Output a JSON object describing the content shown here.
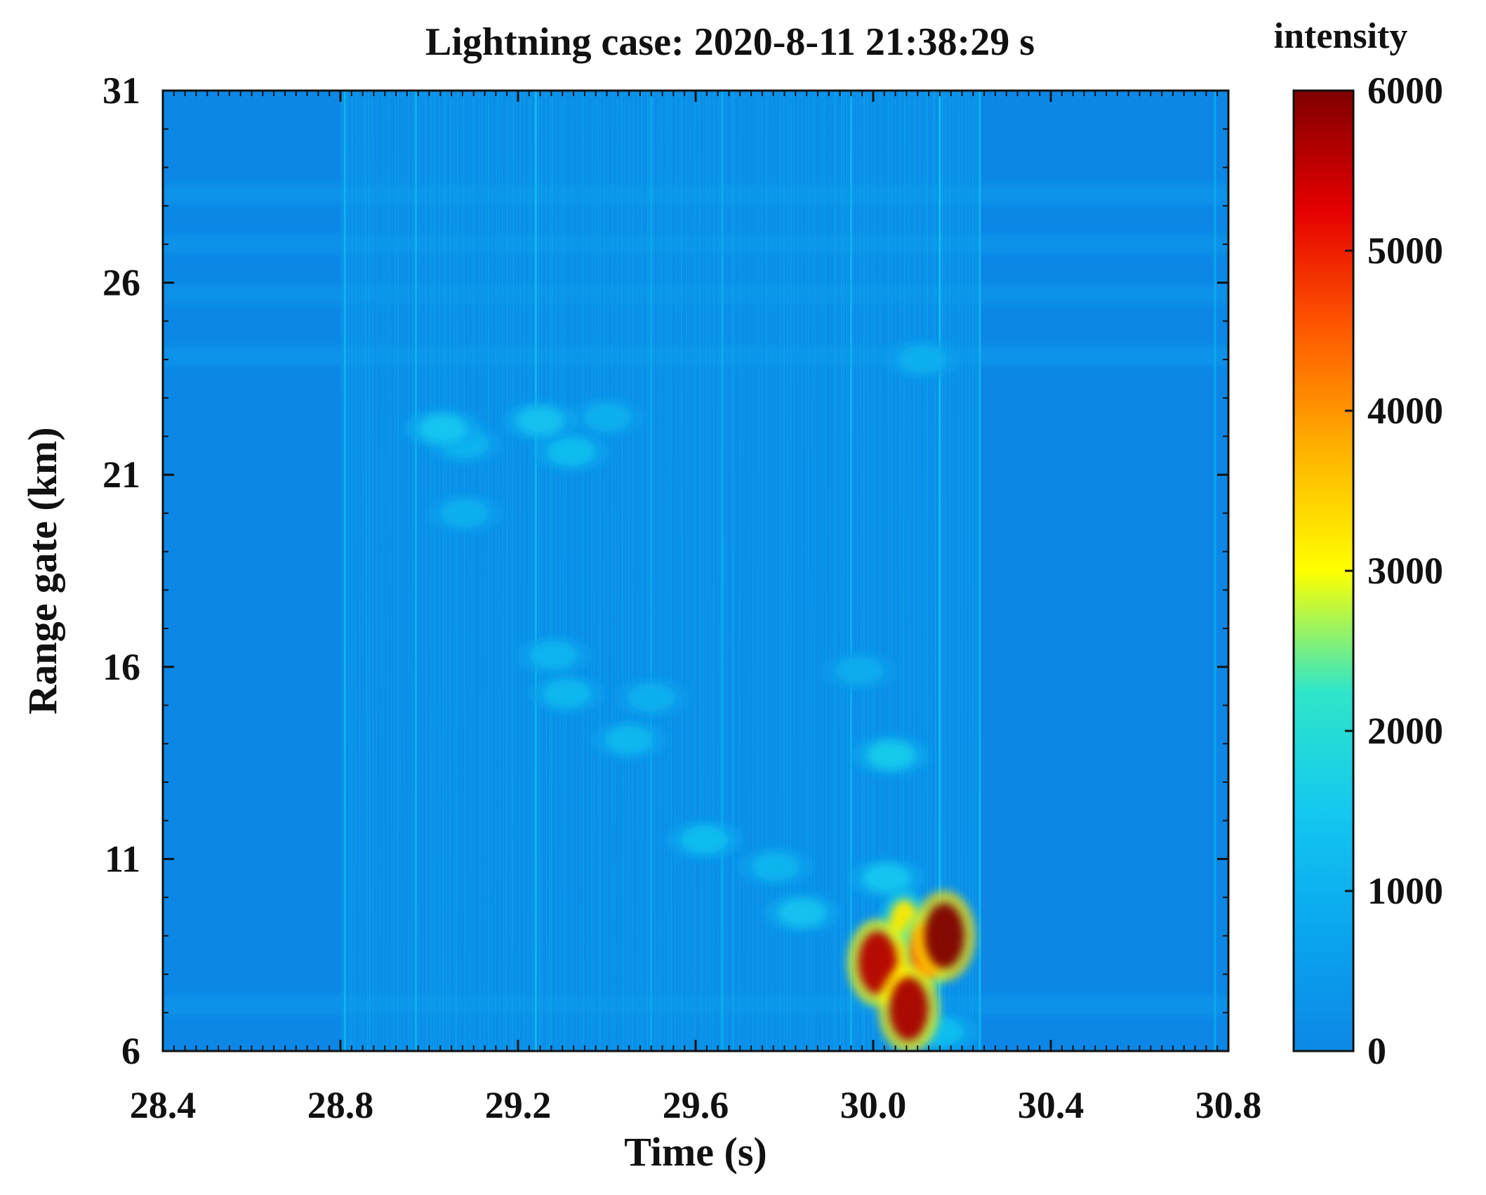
{
  "chart_data": {
    "type": "heatmap",
    "title": "Lightning case: 2020-8-11 21:38:29 s",
    "xlabel": "Time (s)",
    "ylabel": "Range gate (km)",
    "xlim": [
      28.4,
      30.8
    ],
    "ylim": [
      6,
      31
    ],
    "x_ticks": [
      28.4,
      28.8,
      29.2,
      29.6,
      30.0,
      30.4,
      30.8
    ],
    "x_tick_labels": [
      "28.4",
      "28.8",
      "29.2",
      "29.6",
      "30.0",
      "30.4",
      "30.8"
    ],
    "y_ticks": [
      6,
      11,
      16,
      21,
      26,
      31
    ],
    "y_tick_labels": [
      "6",
      "11",
      "16",
      "21",
      "26",
      "31"
    ],
    "colorbar": {
      "label": "intensity",
      "range": [
        0,
        6000
      ],
      "ticks": [
        0,
        1000,
        2000,
        3000,
        4000,
        5000,
        6000
      ],
      "tick_labels": [
        "0",
        "1000",
        "2000",
        "3000",
        "4000",
        "5000",
        "6000"
      ],
      "colormap": "jet"
    },
    "background_intensity": 300,
    "active_time_range": [
      28.8,
      30.24
    ],
    "vertical_streaks": [
      {
        "t": 28.81,
        "intensity": 1200
      },
      {
        "t": 28.97,
        "intensity": 1100
      },
      {
        "t": 29.24,
        "intensity": 1300
      },
      {
        "t": 29.5,
        "intensity": 900
      },
      {
        "t": 29.66,
        "intensity": 1000
      },
      {
        "t": 29.95,
        "intensity": 1100
      },
      {
        "t": 30.15,
        "intensity": 1400
      },
      {
        "t": 30.24,
        "intensity": 1200
      },
      {
        "t": 30.77,
        "intensity": 900
      }
    ],
    "horizontal_bands": [
      {
        "range_km": 28.3,
        "intensity": 550
      },
      {
        "range_km": 27.0,
        "intensity": 500
      },
      {
        "range_km": 25.7,
        "intensity": 480
      },
      {
        "range_km": 24.1,
        "intensity": 550
      },
      {
        "range_km": 7.2,
        "intensity": 500
      }
    ],
    "echo_features": [
      {
        "t": 29.03,
        "range_km": 22.2,
        "intensity": 1500
      },
      {
        "t": 29.08,
        "range_km": 21.8,
        "intensity": 1100
      },
      {
        "t": 29.08,
        "range_km": 20.0,
        "intensity": 1000
      },
      {
        "t": 29.25,
        "range_km": 22.4,
        "intensity": 1400
      },
      {
        "t": 29.32,
        "range_km": 21.6,
        "intensity": 1300
      },
      {
        "t": 29.4,
        "range_km": 22.5,
        "intensity": 1000
      },
      {
        "t": 29.28,
        "range_km": 16.3,
        "intensity": 1100
      },
      {
        "t": 29.31,
        "range_km": 15.3,
        "intensity": 1200
      },
      {
        "t": 29.45,
        "range_km": 14.1,
        "intensity": 1200
      },
      {
        "t": 29.5,
        "range_km": 15.2,
        "intensity": 1000
      },
      {
        "t": 29.62,
        "range_km": 11.5,
        "intensity": 1300
      },
      {
        "t": 29.78,
        "range_km": 10.8,
        "intensity": 1100
      },
      {
        "t": 29.84,
        "range_km": 9.6,
        "intensity": 1400
      },
      {
        "t": 29.97,
        "range_km": 15.9,
        "intensity": 900
      },
      {
        "t": 30.04,
        "range_km": 13.7,
        "intensity": 1600
      },
      {
        "t": 30.03,
        "range_km": 10.5,
        "intensity": 1500
      },
      {
        "t": 30.07,
        "range_km": 9.3,
        "intensity": 3200
      },
      {
        "t": 30.01,
        "range_km": 8.3,
        "intensity": 5600
      },
      {
        "t": 30.06,
        "range_km": 8.1,
        "intensity": 4200
      },
      {
        "t": 30.08,
        "range_km": 7.1,
        "intensity": 5700
      },
      {
        "t": 30.12,
        "range_km": 8.6,
        "intensity": 4400
      },
      {
        "t": 30.16,
        "range_km": 9.0,
        "intensity": 6000
      },
      {
        "t": 30.15,
        "range_km": 6.5,
        "intensity": 1300
      },
      {
        "t": 30.11,
        "range_km": 24.0,
        "intensity": 1000
      }
    ]
  }
}
